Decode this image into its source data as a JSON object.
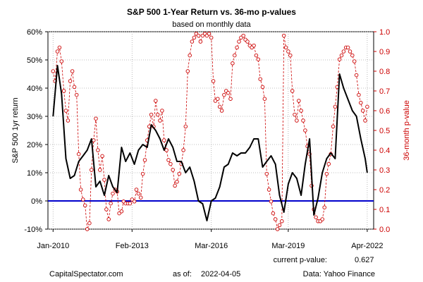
{
  "chart_data": {
    "type": "line",
    "title": "S&P 500 1-Year Return vs. 36-mo p-values",
    "subtitle": "based on monthly data",
    "ylabel_left": "S&P 500 1yr return",
    "ylabel_right": "36-month p-value",
    "ylim_left": [
      -10,
      60
    ],
    "yticks_left": [
      "-10%",
      "0%",
      "10%",
      "20%",
      "30%",
      "40%",
      "50%",
      "60%"
    ],
    "ylim_right": [
      0,
      1
    ],
    "yticks_right": [
      "0.0",
      "0.1",
      "0.2",
      "0.3",
      "0.4",
      "0.5",
      "0.6",
      "0.7",
      "0.8",
      "0.9",
      "1.0"
    ],
    "xlim": [
      2009.8,
      2022.5
    ],
    "xticks": [
      {
        "label": "Jan-2010",
        "x": 2010.0
      },
      {
        "label": "Feb-2013",
        "x": 2013.08
      },
      {
        "label": "Mar-2016",
        "x": 2016.17
      },
      {
        "label": "Mar-2019",
        "x": 2019.17
      },
      {
        "label": "Apr-2022",
        "x": 2022.25
      }
    ],
    "grid": true,
    "zero_line_color": "#0000cc",
    "series": [
      {
        "color": "#000000",
        "style": "solid",
        "axis": "left",
        "points": [
          [
            2010.0,
            30
          ],
          [
            2010.17,
            48
          ],
          [
            2010.33,
            38
          ],
          [
            2010.5,
            15
          ],
          [
            2010.67,
            8
          ],
          [
            2010.83,
            9
          ],
          [
            2011.0,
            14
          ],
          [
            2011.17,
            16
          ],
          [
            2011.33,
            18
          ],
          [
            2011.5,
            22
          ],
          [
            2011.67,
            5
          ],
          [
            2011.83,
            7
          ],
          [
            2012.0,
            2
          ],
          [
            2012.17,
            9
          ],
          [
            2012.33,
            5
          ],
          [
            2012.5,
            3
          ],
          [
            2012.67,
            19
          ],
          [
            2012.83,
            14
          ],
          [
            2013.0,
            17
          ],
          [
            2013.17,
            13
          ],
          [
            2013.33,
            18
          ],
          [
            2013.5,
            20
          ],
          [
            2013.67,
            19
          ],
          [
            2013.83,
            27
          ],
          [
            2014.0,
            25
          ],
          [
            2014.17,
            22
          ],
          [
            2014.33,
            18
          ],
          [
            2014.5,
            22
          ],
          [
            2014.67,
            19
          ],
          [
            2014.83,
            14
          ],
          [
            2015.0,
            14
          ],
          [
            2015.17,
            10
          ],
          [
            2015.33,
            12
          ],
          [
            2015.5,
            7
          ],
          [
            2015.67,
            0
          ],
          [
            2015.83,
            -1
          ],
          [
            2016.0,
            -7
          ],
          [
            2016.17,
            0
          ],
          [
            2016.33,
            1
          ],
          [
            2016.5,
            5
          ],
          [
            2016.67,
            12
          ],
          [
            2016.83,
            13
          ],
          [
            2017.0,
            17
          ],
          [
            2017.17,
            16
          ],
          [
            2017.33,
            17
          ],
          [
            2017.5,
            17
          ],
          [
            2017.67,
            19
          ],
          [
            2017.83,
            22
          ],
          [
            2018.0,
            22
          ],
          [
            2018.17,
            12
          ],
          [
            2018.33,
            14
          ],
          [
            2018.5,
            16
          ],
          [
            2018.67,
            13
          ],
          [
            2018.83,
            2
          ],
          [
            2019.0,
            -4
          ],
          [
            2019.17,
            6
          ],
          [
            2019.33,
            10
          ],
          [
            2019.5,
            8
          ],
          [
            2019.67,
            2
          ],
          [
            2019.83,
            13
          ],
          [
            2020.0,
            22
          ],
          [
            2020.17,
            -5
          ],
          [
            2020.33,
            1
          ],
          [
            2020.5,
            10
          ],
          [
            2020.67,
            15
          ],
          [
            2020.83,
            17
          ],
          [
            2021.0,
            15
          ],
          [
            2021.17,
            45
          ],
          [
            2021.33,
            40
          ],
          [
            2021.5,
            36
          ],
          [
            2021.67,
            32
          ],
          [
            2021.83,
            30
          ],
          [
            2022.0,
            22
          ],
          [
            2022.17,
            15
          ],
          [
            2022.25,
            10
          ]
        ]
      },
      {
        "color": "#cc0000",
        "style": "dashed-markers",
        "axis": "right",
        "points": [
          [
            2010.0,
            0.8
          ],
          [
            2010.08,
            0.75
          ],
          [
            2010.17,
            0.9
          ],
          [
            2010.25,
            0.92
          ],
          [
            2010.33,
            0.85
          ],
          [
            2010.42,
            0.7
          ],
          [
            2010.5,
            0.6
          ],
          [
            2010.58,
            0.55
          ],
          [
            2010.67,
            0.75
          ],
          [
            2010.75,
            0.8
          ],
          [
            2010.83,
            0.72
          ],
          [
            2010.92,
            0.68
          ],
          [
            2011.0,
            0.38
          ],
          [
            2011.08,
            0.2
          ],
          [
            2011.17,
            0.15
          ],
          [
            2011.25,
            0.12
          ],
          [
            2011.33,
            0.0
          ],
          [
            2011.42,
            0.03
          ],
          [
            2011.5,
            0.3
          ],
          [
            2011.58,
            0.45
          ],
          [
            2011.67,
            0.56
          ],
          [
            2011.75,
            0.4
          ],
          [
            2011.83,
            0.3
          ],
          [
            2011.92,
            0.37
          ],
          [
            2012.0,
            0.25
          ],
          [
            2012.08,
            0.1
          ],
          [
            2012.17,
            0.05
          ],
          [
            2012.25,
            0.13
          ],
          [
            2012.33,
            0.18
          ],
          [
            2012.42,
            0.2
          ],
          [
            2012.5,
            0.19
          ],
          [
            2012.58,
            0.08
          ],
          [
            2012.67,
            0.09
          ],
          [
            2012.75,
            0.14
          ],
          [
            2012.83,
            0.13
          ],
          [
            2012.92,
            0.13
          ],
          [
            2013.0,
            0.13
          ],
          [
            2013.08,
            0.15
          ],
          [
            2013.17,
            0.14
          ],
          [
            2013.25,
            0.2
          ],
          [
            2013.33,
            0.18
          ],
          [
            2013.42,
            0.16
          ],
          [
            2013.5,
            0.28
          ],
          [
            2013.58,
            0.35
          ],
          [
            2013.67,
            0.45
          ],
          [
            2013.75,
            0.52
          ],
          [
            2013.83,
            0.58
          ],
          [
            2013.92,
            0.52
          ],
          [
            2014.0,
            0.65
          ],
          [
            2014.08,
            0.58
          ],
          [
            2014.17,
            0.55
          ],
          [
            2014.25,
            0.6
          ],
          [
            2014.33,
            0.45
          ],
          [
            2014.42,
            0.4
          ],
          [
            2014.5,
            0.35
          ],
          [
            2014.58,
            0.33
          ],
          [
            2014.67,
            0.3
          ],
          [
            2014.75,
            0.22
          ],
          [
            2014.83,
            0.24
          ],
          [
            2014.92,
            0.28
          ],
          [
            2015.0,
            0.33
          ],
          [
            2015.08,
            0.4
          ],
          [
            2015.17,
            0.52
          ],
          [
            2015.25,
            0.8
          ],
          [
            2015.33,
            0.88
          ],
          [
            2015.42,
            0.95
          ],
          [
            2015.5,
            0.97
          ],
          [
            2015.58,
            0.99
          ],
          [
            2015.67,
            0.98
          ],
          [
            2015.75,
            0.95
          ],
          [
            2015.83,
            0.98
          ],
          [
            2015.92,
            0.99
          ],
          [
            2016.0,
            0.98
          ],
          [
            2016.08,
            0.99
          ],
          [
            2016.17,
            0.97
          ],
          [
            2016.25,
            0.75
          ],
          [
            2016.33,
            0.65
          ],
          [
            2016.42,
            0.66
          ],
          [
            2016.5,
            0.62
          ],
          [
            2016.58,
            0.6
          ],
          [
            2016.67,
            0.68
          ],
          [
            2016.75,
            0.7
          ],
          [
            2016.83,
            0.69
          ],
          [
            2016.92,
            0.66
          ],
          [
            2017.0,
            0.84
          ],
          [
            2017.08,
            0.88
          ],
          [
            2017.17,
            0.92
          ],
          [
            2017.25,
            0.95
          ],
          [
            2017.33,
            0.97
          ],
          [
            2017.42,
            0.98
          ],
          [
            2017.5,
            0.96
          ],
          [
            2017.58,
            0.95
          ],
          [
            2017.67,
            0.93
          ],
          [
            2017.75,
            0.92
          ],
          [
            2017.83,
            0.93
          ],
          [
            2017.92,
            0.88
          ],
          [
            2018.0,
            0.86
          ],
          [
            2018.08,
            0.76
          ],
          [
            2018.17,
            0.72
          ],
          [
            2018.25,
            0.66
          ],
          [
            2018.33,
            0.28
          ],
          [
            2018.42,
            0.2
          ],
          [
            2018.5,
            0.14
          ],
          [
            2018.58,
            0.08
          ],
          [
            2018.67,
            0.05
          ],
          [
            2018.75,
            0.0
          ],
          [
            2018.83,
            0.02
          ],
          [
            2018.92,
            0.04
          ],
          [
            2019.0,
            0.98
          ],
          [
            2019.08,
            0.92
          ],
          [
            2019.17,
            0.9
          ],
          [
            2019.25,
            0.88
          ],
          [
            2019.33,
            0.7
          ],
          [
            2019.42,
            0.58
          ],
          [
            2019.5,
            0.55
          ],
          [
            2019.58,
            0.65
          ],
          [
            2019.67,
            0.6
          ],
          [
            2019.75,
            0.55
          ],
          [
            2019.83,
            0.5
          ],
          [
            2019.92,
            0.42
          ],
          [
            2020.0,
            0.38
          ],
          [
            2020.08,
            0.22
          ],
          [
            2020.17,
            0.1
          ],
          [
            2020.25,
            0.06
          ],
          [
            2020.33,
            0.04
          ],
          [
            2020.42,
            0.04
          ],
          [
            2020.5,
            0.05
          ],
          [
            2020.58,
            0.11
          ],
          [
            2020.67,
            0.28
          ],
          [
            2020.75,
            0.33
          ],
          [
            2020.83,
            0.38
          ],
          [
            2020.92,
            0.52
          ],
          [
            2021.0,
            0.62
          ],
          [
            2021.08,
            0.72
          ],
          [
            2021.17,
            0.86
          ],
          [
            2021.25,
            0.88
          ],
          [
            2021.33,
            0.9
          ],
          [
            2021.42,
            0.92
          ],
          [
            2021.5,
            0.92
          ],
          [
            2021.58,
            0.9
          ],
          [
            2021.67,
            0.88
          ],
          [
            2021.75,
            0.85
          ],
          [
            2021.83,
            0.78
          ],
          [
            2021.92,
            0.68
          ],
          [
            2022.0,
            0.64
          ],
          [
            2022.08,
            0.6
          ],
          [
            2022.17,
            0.55
          ],
          [
            2022.25,
            0.62
          ]
        ]
      }
    ]
  },
  "footer": {
    "current_pvalue_label": "current p-value:",
    "current_pvalue": "0.627",
    "source_site": "CapitalSpectator.com",
    "as_of_label": "as of:",
    "as_of_date": "2022-04-05",
    "data_source": "Data: Yahoo Finance"
  }
}
